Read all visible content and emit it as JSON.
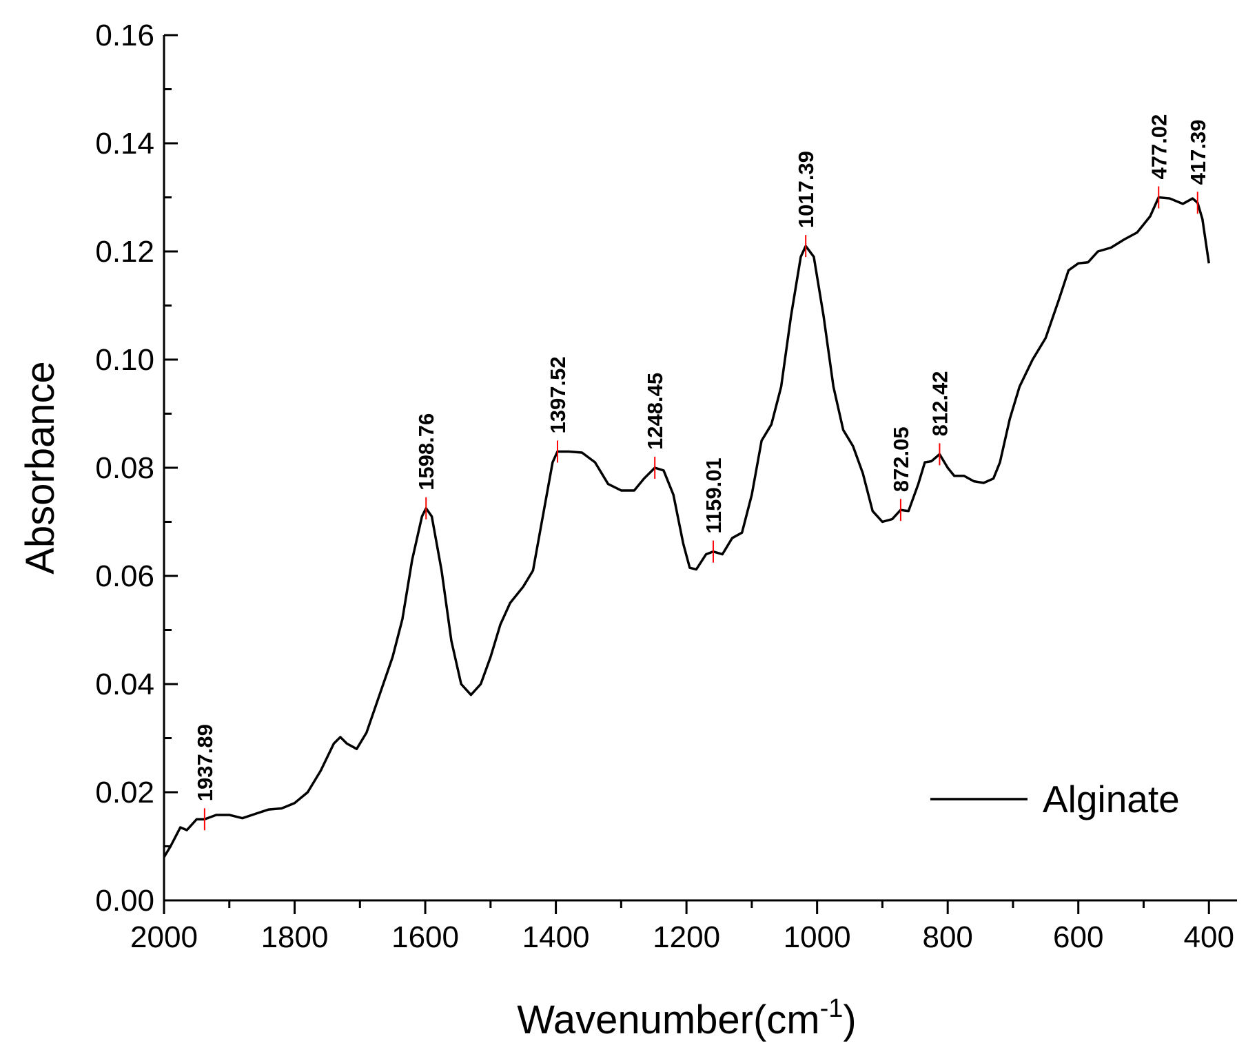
{
  "chart_data": {
    "type": "line",
    "ylabel": "Absorbance",
    "xlabel": {
      "text": "Wavenumber(cm",
      "superscript": "-1",
      "suffix": ")"
    },
    "x": [
      2000,
      1990,
      1975,
      1965,
      1950,
      1937.89,
      1920,
      1900,
      1880,
      1860,
      1840,
      1820,
      1800,
      1780,
      1760,
      1740,
      1730,
      1720,
      1705,
      1690,
      1670,
      1650,
      1635,
      1620,
      1605,
      1598.76,
      1590,
      1575,
      1560,
      1545,
      1530,
      1515,
      1500,
      1485,
      1470,
      1450,
      1435,
      1420,
      1405,
      1397.52,
      1380,
      1360,
      1340,
      1320,
      1300,
      1280,
      1265,
      1248.45,
      1235,
      1220,
      1205,
      1195,
      1185,
      1170,
      1159.01,
      1145,
      1130,
      1115,
      1100,
      1085,
      1070,
      1055,
      1040,
      1025,
      1017.39,
      1005,
      990,
      975,
      960,
      945,
      930,
      915,
      900,
      885,
      872.05,
      860,
      845,
      835,
      825,
      812.42,
      800,
      790,
      775,
      760,
      745,
      730,
      720,
      705,
      690,
      670,
      650,
      630,
      615,
      600,
      585,
      570,
      550,
      530,
      510,
      490,
      477.02,
      460,
      440,
      425,
      417.39,
      410,
      400
    ],
    "series": [
      {
        "name": "Alginate",
        "color": "#000000",
        "values": [
          0.008,
          0.01,
          0.0135,
          0.013,
          0.015,
          0.015,
          0.0158,
          0.0158,
          0.0152,
          0.016,
          0.0168,
          0.017,
          0.018,
          0.02,
          0.024,
          0.029,
          0.0302,
          0.029,
          0.028,
          0.031,
          0.038,
          0.045,
          0.052,
          0.063,
          0.071,
          0.0725,
          0.071,
          0.061,
          0.048,
          0.04,
          0.038,
          0.04,
          0.045,
          0.051,
          0.055,
          0.058,
          0.061,
          0.071,
          0.081,
          0.083,
          0.083,
          0.0828,
          0.081,
          0.077,
          0.0758,
          0.0758,
          0.078,
          0.08,
          0.0795,
          0.075,
          0.066,
          0.0615,
          0.0612,
          0.064,
          0.0645,
          0.064,
          0.067,
          0.068,
          0.075,
          0.085,
          0.088,
          0.095,
          0.108,
          0.119,
          0.121,
          0.119,
          0.108,
          0.095,
          0.087,
          0.084,
          0.079,
          0.072,
          0.07,
          0.0705,
          0.0722,
          0.072,
          0.077,
          0.081,
          0.0812,
          0.0825,
          0.08,
          0.0785,
          0.0785,
          0.0775,
          0.0772,
          0.078,
          0.081,
          0.089,
          0.095,
          0.1,
          0.104,
          0.111,
          0.1165,
          0.1178,
          0.118,
          0.12,
          0.1207,
          0.1222,
          0.1235,
          0.1265,
          0.13,
          0.1298,
          0.1288,
          0.1298,
          0.129,
          0.126,
          0.1178
        ]
      }
    ],
    "peaks": [
      {
        "x": 1937.89,
        "y": 0.015
      },
      {
        "x": 1598.76,
        "y": 0.0725
      },
      {
        "x": 1397.52,
        "y": 0.083
      },
      {
        "x": 1248.45,
        "y": 0.08
      },
      {
        "x": 1159.01,
        "y": 0.0645
      },
      {
        "x": 1017.39,
        "y": 0.121
      },
      {
        "x": 872.05,
        "y": 0.0722
      },
      {
        "x": 812.42,
        "y": 0.0825
      },
      {
        "x": 477.02,
        "y": 0.13
      },
      {
        "x": 417.39,
        "y": 0.129
      }
    ],
    "peak_color": "#ff0000",
    "xlim": [
      2000,
      357
    ],
    "xticks": [
      2000,
      1800,
      1600,
      1400,
      1200,
      1000,
      800,
      600,
      400
    ],
    "xminorticks": [
      1900,
      1700,
      1500,
      1300,
      1100,
      900,
      700,
      500
    ],
    "ylim": [
      0,
      0.16
    ],
    "yticks": [
      {
        "value": 0,
        "label": "0.00"
      },
      {
        "value": 0.02,
        "label": "0.02"
      },
      {
        "value": 0.04,
        "label": "0.04"
      },
      {
        "value": 0.06,
        "label": "0.06"
      },
      {
        "value": 0.08,
        "label": "0.08"
      },
      {
        "value": 0.1,
        "label": "0.10"
      },
      {
        "value": 0.12,
        "label": "0.12"
      },
      {
        "value": 0.14,
        "label": "0.14"
      },
      {
        "value": 0.16,
        "label": "0.16"
      }
    ],
    "yminorticks": [
      0.01,
      0.03,
      0.05,
      0.07,
      0.09,
      0.11,
      0.13,
      0.15
    ],
    "legend": "lower right",
    "grid": false
  }
}
